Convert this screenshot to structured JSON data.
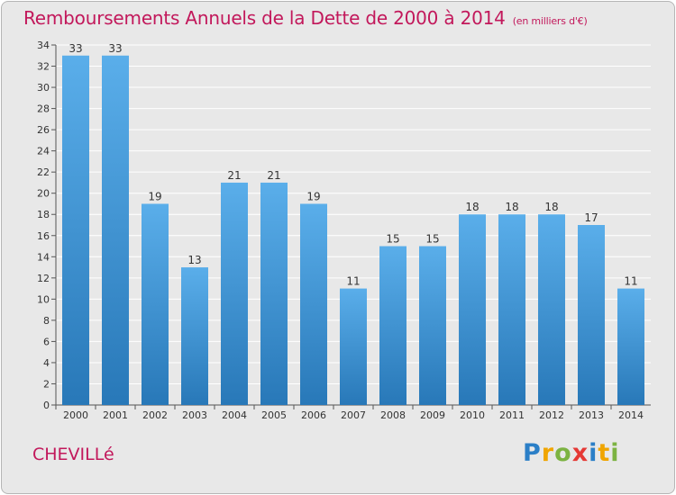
{
  "header": {
    "title": "Remboursements Annuels de la Dette de 2000 à 2014",
    "unit": "(en milliers d'€)"
  },
  "footer": {
    "commune": "CHEVILLé",
    "logo_letters": [
      "P",
      "r",
      "o",
      "x",
      "i",
      "t",
      "i"
    ]
  },
  "colors": {
    "title": "#c2185b",
    "bar_top": "#5aaeea",
    "bar_bottom": "#2878b8"
  },
  "chart_data": {
    "type": "bar",
    "categories": [
      "2000",
      "2001",
      "2002",
      "2003",
      "2004",
      "2005",
      "2006",
      "2007",
      "2008",
      "2009",
      "2010",
      "2011",
      "2012",
      "2013",
      "2014"
    ],
    "values": [
      33,
      33,
      19,
      13,
      21,
      21,
      19,
      11,
      15,
      15,
      18,
      18,
      18,
      17,
      11
    ],
    "ylim": [
      0,
      34
    ],
    "yticks": [
      0,
      2,
      4,
      6,
      8,
      10,
      12,
      14,
      16,
      18,
      20,
      22,
      24,
      26,
      28,
      30,
      32,
      34
    ],
    "grid": true,
    "data_labels": true
  }
}
